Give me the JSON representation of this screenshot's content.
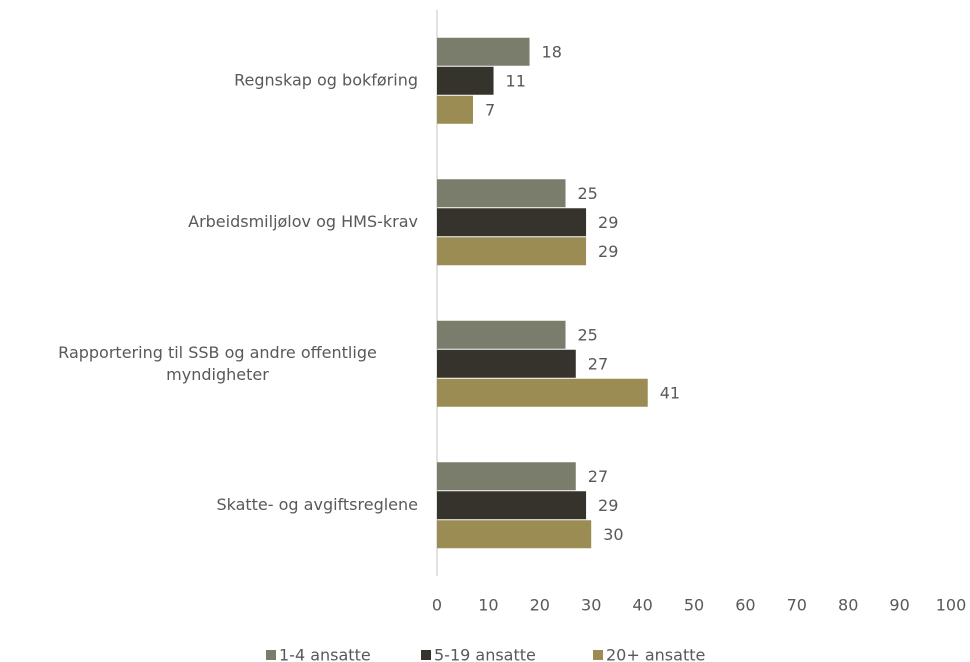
{
  "chart_data": {
    "type": "bar",
    "orientation": "horizontal",
    "categories": [
      "Regnskap og bokføring",
      "Arbeidsmiljølov og HMS-krav",
      "Rapportering til SSB og andre offentlige myndigheter",
      "Skatte- og avgiftsreglene"
    ],
    "series": [
      {
        "name": "1-4 ansatte",
        "color": "#7a7d6b",
        "values": [
          18,
          25,
          25,
          27
        ]
      },
      {
        "name": "5-19 ansatte",
        "color": "#35332b",
        "values": [
          11,
          29,
          27,
          29
        ]
      },
      {
        "name": "20+ ansatte",
        "color": "#9a8c52",
        "values": [
          7,
          29,
          41,
          30
        ]
      }
    ],
    "xlim": [
      0,
      100
    ],
    "xticks": [
      0,
      10,
      20,
      30,
      40,
      50,
      60,
      70,
      80,
      90,
      100
    ],
    "legend": "bottom"
  }
}
